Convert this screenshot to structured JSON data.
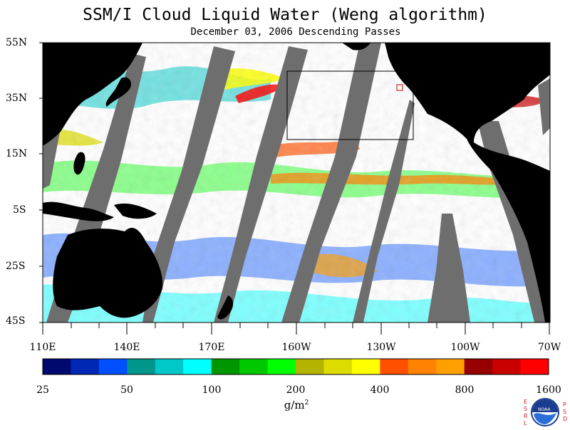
{
  "title": "SSM/I Cloud Liquid Water (Weng algorithm)",
  "subtitle": "December 03, 2006  Descending Passes",
  "colors": {
    "land": "#000000",
    "no_data": "#6e6e6e",
    "ocean_clear": "#ffffff",
    "box_outline": "#000000",
    "marker": "#cc0000"
  },
  "lat_ticks": [
    "55N",
    "35N",
    "15N",
    "5S",
    "25S",
    "45S"
  ],
  "lon_ticks": [
    "110E",
    "140E",
    "170E",
    "160W",
    "130W",
    "100W",
    "70W"
  ],
  "colorbar": {
    "colors": [
      "#000a6e",
      "#0028b4",
      "#0050ff",
      "#00968c",
      "#00c8c8",
      "#00ffff",
      "#009600",
      "#00c800",
      "#00ff00",
      "#b4b400",
      "#dcdc00",
      "#ffff00",
      "#ff5000",
      "#ff8200",
      "#ffa000",
      "#960000",
      "#c80000",
      "#ff0000"
    ],
    "labels": [
      "25",
      "50",
      "100",
      "200",
      "400",
      "800",
      "1600"
    ],
    "units_base": "g/m",
    "units_exp": "2"
  },
  "logo": {
    "name": "noaa-logo",
    "text": "NOAA",
    "side_left": [
      "E",
      "S",
      "R",
      "L"
    ],
    "side_right": [
      "P",
      "S",
      "D"
    ]
  }
}
